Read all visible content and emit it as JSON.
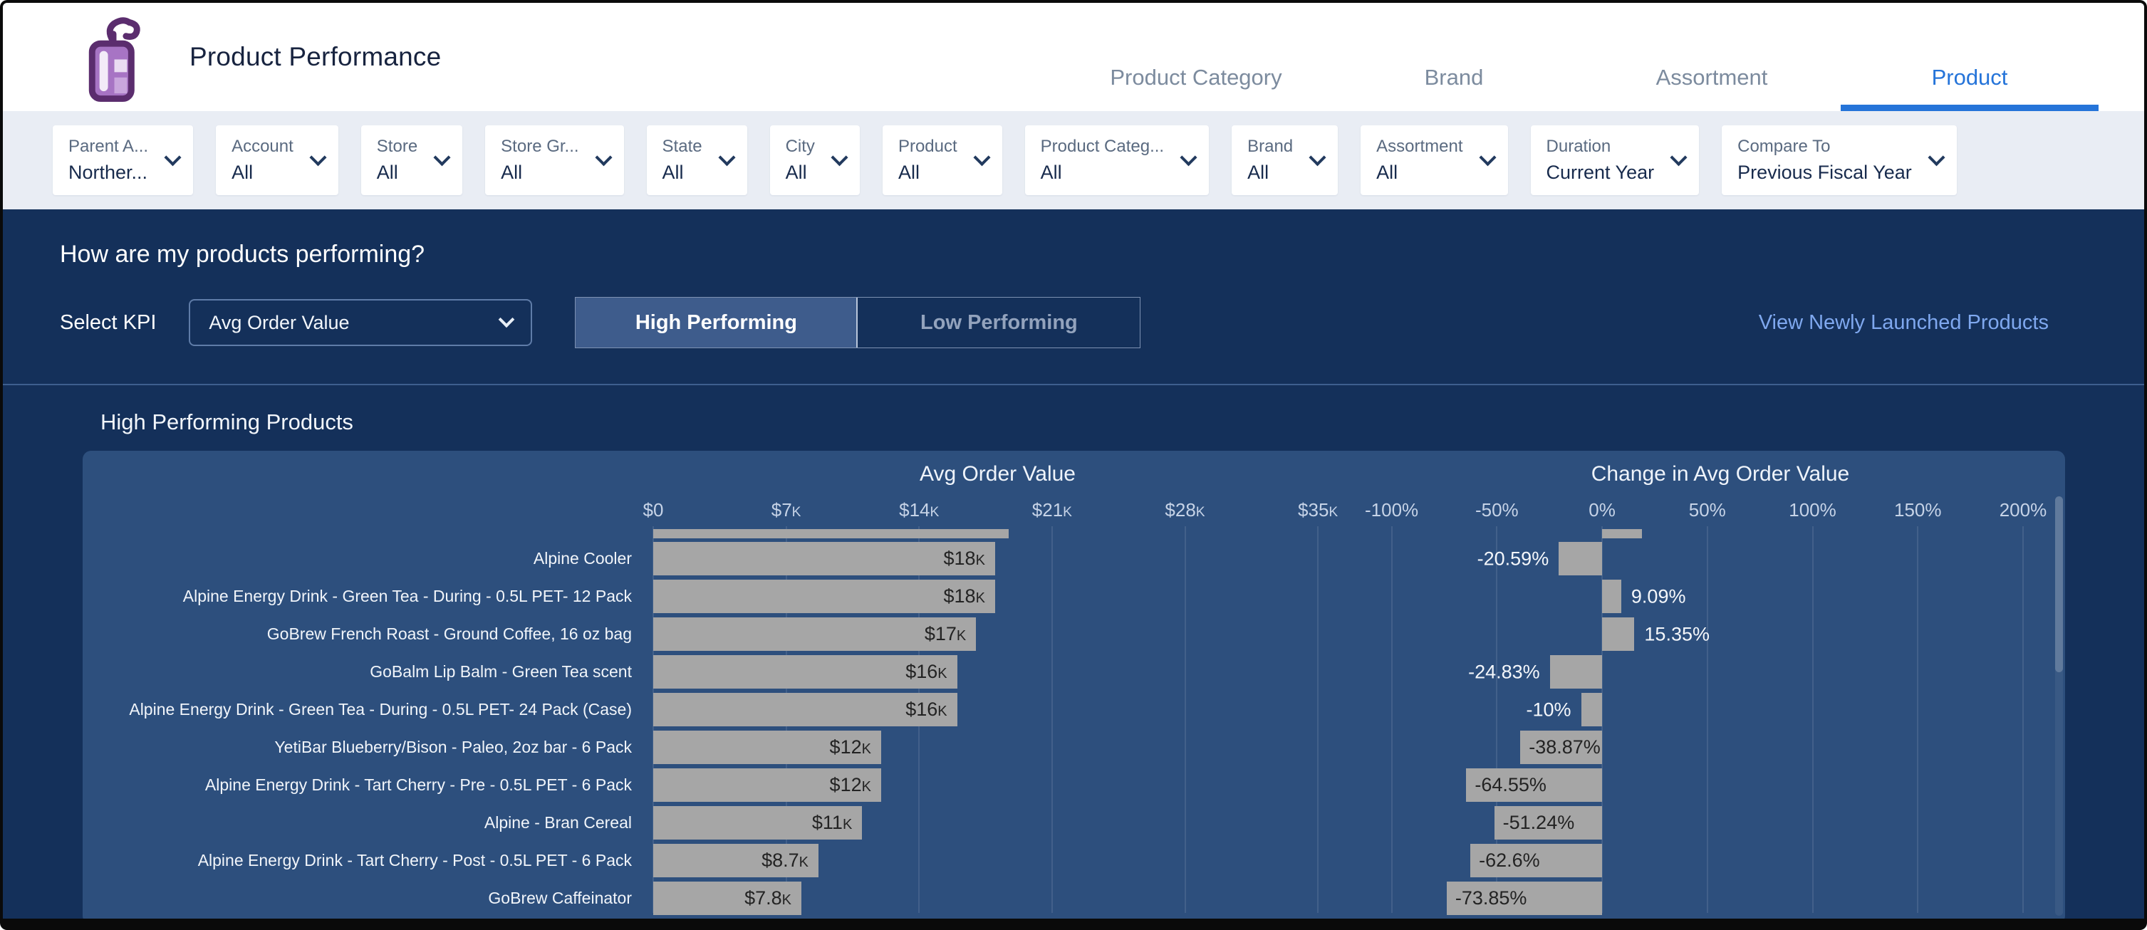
{
  "header": {
    "title": "Product Performance",
    "logo_icon": "spray-bottle-icon",
    "tabs": [
      {
        "label": "Product Category",
        "active": false
      },
      {
        "label": "Brand",
        "active": false
      },
      {
        "label": "Assortment",
        "active": false
      },
      {
        "label": "Product",
        "active": true
      }
    ]
  },
  "filters": [
    {
      "label": "Parent A...",
      "value": "Norther..."
    },
    {
      "label": "Account",
      "value": "All"
    },
    {
      "label": "Store",
      "value": "All"
    },
    {
      "label": "Store Gr...",
      "value": "All"
    },
    {
      "label": "State",
      "value": "All"
    },
    {
      "label": "City",
      "value": "All"
    },
    {
      "label": "Product",
      "value": "All"
    },
    {
      "label": "Product Categ...",
      "value": "All"
    },
    {
      "label": "Brand",
      "value": "All"
    },
    {
      "label": "Assortment",
      "value": "All"
    },
    {
      "label": "Duration",
      "value": "Current Year"
    },
    {
      "label": "Compare To",
      "value": "Previous Fiscal Year"
    }
  ],
  "kpi_section": {
    "question": "How are my products performing?",
    "select_label": "Select KPI",
    "kpi_selected": "Avg Order Value",
    "toggle_high": "High Performing",
    "toggle_low": "Low Performing",
    "toggle_active": "High Performing",
    "link": "View Newly Launched Products"
  },
  "chart_section": {
    "title": "High Performing Products"
  },
  "chart_data": {
    "type": "bar",
    "orientation": "horizontal",
    "panels": [
      {
        "key": "avg",
        "title": "Avg Order Value",
        "axis_min": 0,
        "axis_max": 35,
        "ticks": [
          {
            "v": 0,
            "label": "$0"
          },
          {
            "v": 7,
            "label": "$7K"
          },
          {
            "v": 14,
            "label": "$14K"
          },
          {
            "v": 21,
            "label": "$21K"
          },
          {
            "v": 28,
            "label": "$28K"
          },
          {
            "v": 35,
            "label": "$35K"
          }
        ]
      },
      {
        "key": "change",
        "title": "Change in Avg Order Value",
        "axis_min": -100,
        "axis_max": 200,
        "ticks": [
          {
            "v": -100,
            "label": "-100%"
          },
          {
            "v": -50,
            "label": "-50%"
          },
          {
            "v": 0,
            "label": "0%"
          },
          {
            "v": 50,
            "label": "50%"
          },
          {
            "v": 100,
            "label": "100%"
          },
          {
            "v": 150,
            "label": "150%"
          },
          {
            "v": 200,
            "label": "200%"
          }
        ]
      }
    ],
    "rows": [
      {
        "product": "",
        "clipped": true,
        "avg": 18.7,
        "avg_label": "",
        "change": 19,
        "change_label": ""
      },
      {
        "product": "Alpine Cooler",
        "clipped": false,
        "avg": 18,
        "avg_label": "$18K",
        "change": -20.59,
        "change_label": "-20.59%"
      },
      {
        "product": "Alpine Energy Drink - Green Tea - During - 0.5L PET- 12 Pack",
        "clipped": false,
        "avg": 18,
        "avg_label": "$18K",
        "change": 9.09,
        "change_label": "9.09%"
      },
      {
        "product": "GoBrew French Roast - Ground Coffee, 16 oz bag",
        "clipped": false,
        "avg": 17,
        "avg_label": "$17K",
        "change": 15.35,
        "change_label": "15.35%"
      },
      {
        "product": "GoBalm Lip Balm - Green Tea scent",
        "clipped": false,
        "avg": 16,
        "avg_label": "$16K",
        "change": -24.83,
        "change_label": "-24.83%"
      },
      {
        "product": "Alpine Energy Drink - Green Tea - During - 0.5L PET- 24 Pack (Case)",
        "clipped": false,
        "avg": 16,
        "avg_label": "$16K",
        "change": -10,
        "change_label": "-10%"
      },
      {
        "product": "YetiBar Blueberry/Bison - Paleo, 2oz bar - 6 Pack",
        "clipped": false,
        "avg": 12,
        "avg_label": "$12K",
        "change": -38.87,
        "change_label": "-38.87%"
      },
      {
        "product": "Alpine Energy Drink - Tart Cherry - Pre - 0.5L PET - 6 Pack",
        "clipped": false,
        "avg": 12,
        "avg_label": "$12K",
        "change": -64.55,
        "change_label": "-64.55%"
      },
      {
        "product": "Alpine - Bran Cereal",
        "clipped": false,
        "avg": 11,
        "avg_label": "$11K",
        "change": -51.24,
        "change_label": "-51.24%"
      },
      {
        "product": "Alpine Energy Drink - Tart Cherry - Post - 0.5L PET - 6 Pack",
        "clipped": false,
        "avg": 8.7,
        "avg_label": "$8.7K",
        "change": -62.6,
        "change_label": "-62.6%"
      },
      {
        "product": "GoBrew Caffeinator",
        "clipped": false,
        "avg": 7.8,
        "avg_label": "$7.8K",
        "change": -73.85,
        "change_label": "-73.85%"
      }
    ]
  },
  "colors": {
    "section_bg": "#14305A",
    "panel_bg": "#2D4F7D",
    "bar": "#A6A6A6",
    "accent_blue": "#2574D9",
    "link_blue": "#7FA8EF",
    "filter_bar_bg": "#E9EDF4"
  }
}
